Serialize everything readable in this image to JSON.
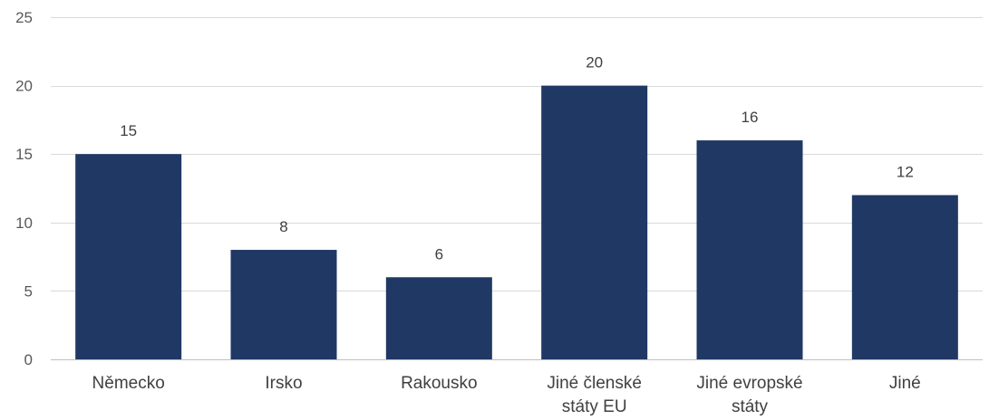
{
  "chart_data": {
    "type": "bar",
    "categories": [
      [
        "Německo"
      ],
      [
        "Irsko"
      ],
      [
        "Rakousko"
      ],
      [
        "Jiné členské",
        "státy EU"
      ],
      [
        "Jiné evropské",
        "státy"
      ],
      [
        "Jiné"
      ]
    ],
    "values": [
      15,
      8,
      6,
      20,
      16,
      12
    ],
    "ylim": [
      0,
      25
    ],
    "yticks": [
      0,
      5,
      10,
      15,
      20,
      25
    ],
    "grid": true,
    "bar_color": "#203864",
    "data_labels": true
  }
}
